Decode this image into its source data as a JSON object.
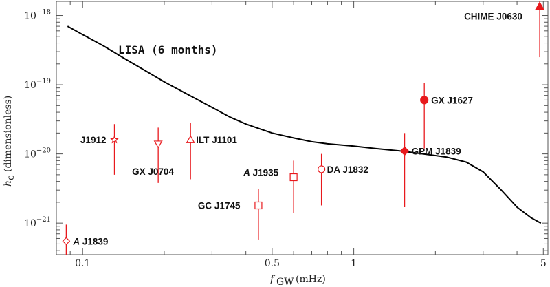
{
  "chart_data": {
    "type": "scatter",
    "x_scale": "log",
    "y_scale": "log",
    "xlim": [
      0.08,
      5.2
    ],
    "ylim": [
      3.5e-22,
      1.6e-18
    ],
    "grid": false,
    "xlabel": "f",
    "xlabel_sub": "GW",
    "xlabel_unit": "(mHz)",
    "ylabel": "h",
    "ylabel_sub": "c",
    "ylabel_unit": "(dimensionless)",
    "x_ticks": [
      {
        "value": 0.1,
        "label": "0.1"
      },
      {
        "value": 0.5,
        "label": "0.5"
      },
      {
        "value": 1,
        "label": "1"
      },
      {
        "value": 5,
        "label": "5"
      }
    ],
    "y_ticks": [
      {
        "exp": -21,
        "base": "10",
        "exp_label": "−21"
      },
      {
        "exp": -20,
        "base": "10",
        "exp_label": "−20"
      },
      {
        "exp": -19,
        "base": "10",
        "exp_label": "−19"
      },
      {
        "exp": -18,
        "base": "10",
        "exp_label": "−18"
      }
    ],
    "curve": {
      "label": "LISA (6 months)",
      "color": "#000000",
      "points": [
        [
          0.088,
          7e-19
        ],
        [
          0.1,
          5.3e-19
        ],
        [
          0.12,
          3.6e-19
        ],
        [
          0.14,
          2.5e-19
        ],
        [
          0.17,
          1.6e-19
        ],
        [
          0.2,
          1.1e-19
        ],
        [
          0.24,
          7.5e-20
        ],
        [
          0.3,
          4.7e-20
        ],
        [
          0.35,
          3.4e-20
        ],
        [
          0.4,
          2.7e-20
        ],
        [
          0.5,
          2e-20
        ],
        [
          0.6,
          1.7e-20
        ],
        [
          0.7,
          1.5e-20
        ],
        [
          0.8,
          1.4e-20
        ],
        [
          1.0,
          1.3e-20
        ],
        [
          1.2,
          1.2e-20
        ],
        [
          1.5,
          1.1e-20
        ],
        [
          1.8,
          1e-20
        ],
        [
          2.2,
          9e-21
        ],
        [
          2.6,
          7.6e-21
        ],
        [
          3.0,
          5.5e-21
        ],
        [
          3.5,
          3e-21
        ],
        [
          4.0,
          1.7e-21
        ],
        [
          4.5,
          1.2e-21
        ],
        [
          4.9,
          1e-21
        ]
      ]
    },
    "sources": [
      {
        "name_italic": "",
        "name": "J1912",
        "x": 0.131,
        "y": 1.6e-20,
        "ylo": 5e-21,
        "yhi": 2.7e-20,
        "marker": "star",
        "filled": false
      },
      {
        "name_italic": "",
        "name": "GX J0704",
        "x": 0.19,
        "y": 1.4e-20,
        "ylo": 3.8e-21,
        "yhi": 2.4e-20,
        "marker": "triangle-down",
        "filled": false
      },
      {
        "name_italic": "",
        "name": "ILT J1101",
        "x": 0.25,
        "y": 1.6e-20,
        "ylo": 4.3e-21,
        "yhi": 2.8e-20,
        "marker": "triangle-up",
        "filled": false
      },
      {
        "name_italic": "",
        "name": "GC J1745",
        "x": 0.445,
        "y": 1.8e-21,
        "ylo": 5.8e-22,
        "yhi": 3.1e-21,
        "marker": "square",
        "filled": false
      },
      {
        "name_italic": "A",
        "name": " J1935",
        "x": 0.6,
        "y": 4.6e-21,
        "ylo": 1.4e-21,
        "yhi": 8e-21,
        "marker": "square",
        "filled": false
      },
      {
        "name_italic": "",
        "name": "DA J1832",
        "x": 0.76,
        "y": 6e-21,
        "ylo": 1.8e-21,
        "yhi": 1e-20,
        "marker": "circle",
        "filled": false
      },
      {
        "name_italic": "",
        "name": "GPM J1839",
        "x": 1.54,
        "y": 1.1e-20,
        "ylo": 1.7e-21,
        "yhi": 2e-20,
        "marker": "diamond",
        "filled": true
      },
      {
        "name_italic": "",
        "name": "GX J1627",
        "x": 1.82,
        "y": 6e-20,
        "ylo": 1.2e-20,
        "yhi": 1.05e-19,
        "marker": "circle",
        "filled": true
      },
      {
        "name_italic": "A",
        "name": " J1839",
        "x": 0.087,
        "y": 5.5e-22,
        "ylo": 3.5e-22,
        "yhi": 9.5e-22,
        "marker": "diamond",
        "filled": false
      },
      {
        "name_italic": "",
        "name": "CHIME J0630",
        "x": 4.85,
        "y": 1.35e-18,
        "ylo": 2.5e-19,
        "yhi": 1.6e-18,
        "marker": "triangle-up",
        "filled": true
      }
    ],
    "colors": {
      "markers": "#e8191d",
      "curve": "#000000",
      "axis": "#555555"
    }
  }
}
